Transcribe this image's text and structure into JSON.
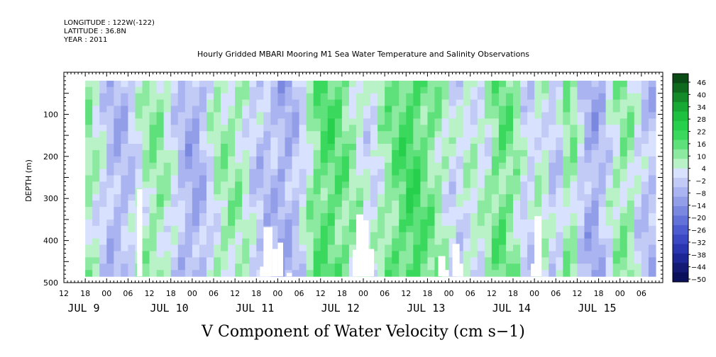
{
  "header": {
    "longitude": "LONGITUDE : 122W(-122)",
    "latitude": "LATITUDE : 36.8N",
    "year": "YEAR : 2011",
    "title": "Hourly Gridded MBARI Mooring M1 Sea Water Temperature and Salinity Observations"
  },
  "chart_data": {
    "type": "heatmap",
    "title": "Hourly Gridded MBARI Mooring M1 Sea Water Temperature and Salinity Observations",
    "variable_label": "V Component of Water Velocity (cm s−1)",
    "ylabel": "DEPTH (m)",
    "ylim": [
      500,
      0
    ],
    "y_reversed": true,
    "y_ticks": [
      100,
      200,
      300,
      400,
      500
    ],
    "x_start_hour": 12,
    "x_range_hours": [
      0,
      168
    ],
    "data_start_hour": 6,
    "data_end_hour": 166,
    "data_top_depth": 20,
    "data_bottom_depth": 485,
    "x_tick_labels": [
      "12",
      "18",
      "00",
      "06",
      "12",
      "18",
      "00",
      "06",
      "12",
      "18",
      "00",
      "06",
      "12",
      "18",
      "00",
      "06",
      "12",
      "18",
      "00",
      "06",
      "12",
      "18",
      "00",
      "06",
      "12",
      "18",
      "00",
      "06"
    ],
    "day_labels": [
      {
        "label": "JUL  9",
        "hour": 0
      },
      {
        "label": "JUL 10",
        "hour": 24
      },
      {
        "label": "JUL 11",
        "hour": 48
      },
      {
        "label": "JUL 12",
        "hour": 72
      },
      {
        "label": "JUL 13",
        "hour": 96
      },
      {
        "label": "JUL 14",
        "hour": 120
      },
      {
        "label": "JUL 15",
        "hour": 144
      }
    ],
    "column_profile": [
      {
        "hour": 6,
        "v": 8
      },
      {
        "hour": 10,
        "v": 2
      },
      {
        "hour": 14,
        "v": -8
      },
      {
        "hour": 18,
        "v": -6
      },
      {
        "hour": 22,
        "v": 4
      },
      {
        "hour": 26,
        "v": 10
      },
      {
        "hour": 30,
        "v": 2
      },
      {
        "hour": 34,
        "v": -8
      },
      {
        "hour": 38,
        "v": -10
      },
      {
        "hour": 42,
        "v": 4
      },
      {
        "hour": 46,
        "v": 8
      },
      {
        "hour": 50,
        "v": 6
      },
      {
        "hour": 54,
        "v": -4
      },
      {
        "hour": 58,
        "v": -6
      },
      {
        "hour": 62,
        "v": -10
      },
      {
        "hour": 66,
        "v": -4
      },
      {
        "hour": 70,
        "v": 10
      },
      {
        "hour": 74,
        "v": 16
      },
      {
        "hour": 78,
        "v": 12
      },
      {
        "hour": 82,
        "v": 6
      },
      {
        "hour": 86,
        "v": -2
      },
      {
        "hour": 90,
        "v": 8
      },
      {
        "hour": 94,
        "v": 14
      },
      {
        "hour": 98,
        "v": 18
      },
      {
        "hour": 102,
        "v": 12
      },
      {
        "hour": 106,
        "v": 6
      },
      {
        "hour": 110,
        "v": -2
      },
      {
        "hour": 114,
        "v": 4
      },
      {
        "hour": 118,
        "v": 2
      },
      {
        "hour": 122,
        "v": 14
      },
      {
        "hour": 126,
        "v": 10
      },
      {
        "hour": 130,
        "v": -4
      },
      {
        "hour": 134,
        "v": 6
      },
      {
        "hour": 138,
        "v": -6
      },
      {
        "hour": 142,
        "v": 12
      },
      {
        "hour": 146,
        "v": -8
      },
      {
        "hour": 150,
        "v": -10
      },
      {
        "hour": 154,
        "v": 4
      },
      {
        "hour": 158,
        "v": 10
      },
      {
        "hour": 162,
        "v": -4
      },
      {
        "hour": 166,
        "v": -6
      }
    ],
    "missing_regions": [
      {
        "h0": 20.5,
        "h1": 22,
        "d0": 278,
        "d1": 485
      },
      {
        "h0": 56,
        "h1": 58.5,
        "d0": 368,
        "d1": 485
      },
      {
        "h0": 55,
        "h1": 56,
        "d0": 462,
        "d1": 485
      },
      {
        "h0": 58.5,
        "h1": 60,
        "d0": 420,
        "d1": 485
      },
      {
        "h0": 60,
        "h1": 61.5,
        "d0": 405,
        "d1": 485
      },
      {
        "h0": 62.5,
        "h1": 64,
        "d0": 477,
        "d1": 485
      },
      {
        "h0": 82,
        "h1": 84,
        "d0": 338,
        "d1": 485
      },
      {
        "h0": 84,
        "h1": 85.5,
        "d0": 352,
        "d1": 485
      },
      {
        "h0": 81,
        "h1": 82,
        "d0": 422,
        "d1": 485
      },
      {
        "h0": 85.5,
        "h1": 87,
        "d0": 420,
        "d1": 485
      },
      {
        "h0": 105,
        "h1": 107,
        "d0": 437,
        "d1": 485
      },
      {
        "h0": 109,
        "h1": 111,
        "d0": 408,
        "d1": 485
      },
      {
        "h0": 107,
        "h1": 108,
        "d0": 470,
        "d1": 485
      },
      {
        "h0": 111,
        "h1": 112,
        "d0": 455,
        "d1": 485
      },
      {
        "h0": 131,
        "h1": 132,
        "d0": 455,
        "d1": 485
      },
      {
        "h0": 132,
        "h1": 134,
        "d0": 342,
        "d1": 485
      }
    ],
    "colorbar": {
      "labels": [
        "46",
        "40",
        "34",
        "28",
        "22",
        "16",
        "10",
        "4",
        "−2",
        "−8",
        "−14",
        "−20",
        "−26",
        "−32",
        "−38",
        "−44",
        "−50"
      ],
      "colors": [
        "#0a4a14",
        "#106a1e",
        "#148a28",
        "#18a834",
        "#1ec040",
        "#26d04c",
        "#3ad85c",
        "#5ee07a",
        "#8ceaa0",
        "#b8f2c6",
        "#d8e2ff",
        "#c2caf6",
        "#aab4f0",
        "#929ee8",
        "#7a88e0",
        "#6272d8",
        "#4c5cd0",
        "#3a48c4",
        "#2a36b0",
        "#1c2694",
        "#121a74",
        "#0a105a"
      ]
    }
  }
}
